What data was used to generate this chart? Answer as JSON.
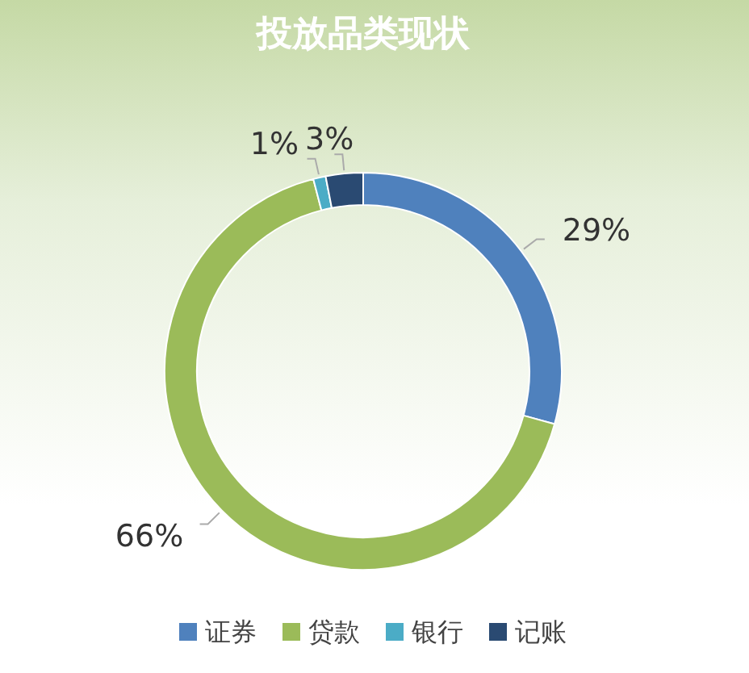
{
  "chart_data": {
    "type": "donut",
    "title": "投放品类现状",
    "categories": [
      "证券",
      "贷款",
      "银行",
      "记账"
    ],
    "values": [
      29,
      66,
      1,
      3
    ],
    "colors": [
      "#4f81bd",
      "#9bbb59",
      "#4bacc6",
      "#2a4a72"
    ],
    "data_labels": true,
    "value_labels": [
      "29%",
      "66%",
      "1%",
      "3%"
    ],
    "legend": "bottom"
  }
}
